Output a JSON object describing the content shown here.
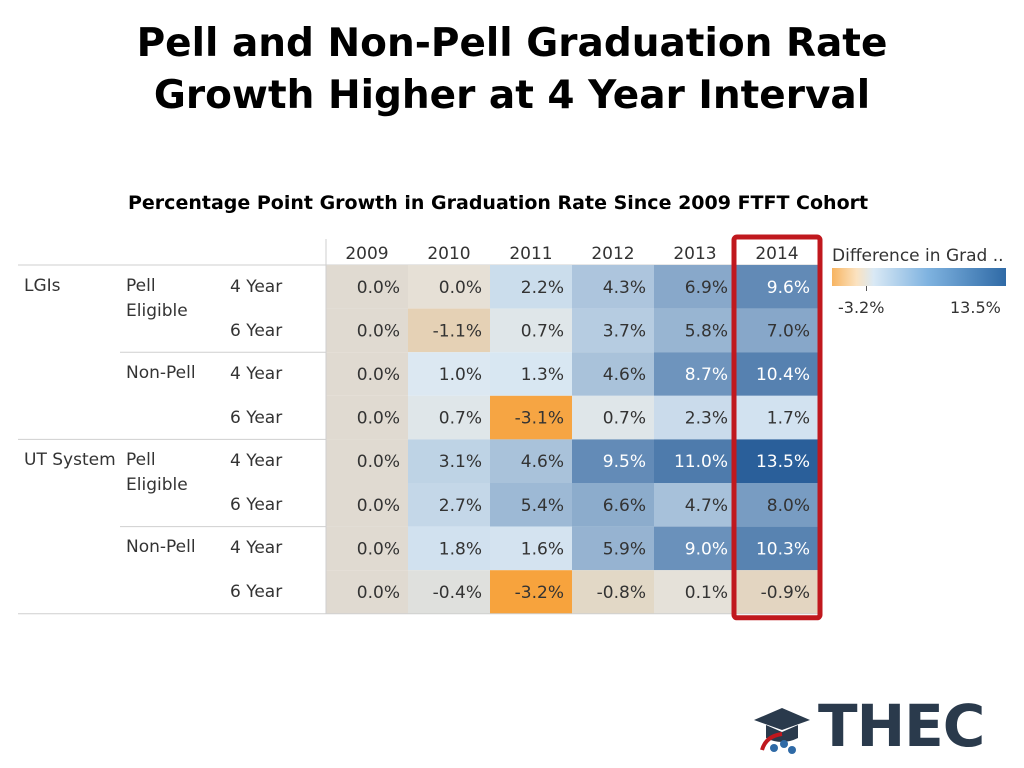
{
  "title": {
    "line1": "Pell and Non-Pell Graduation Rate",
    "line2": "Growth Higher at 4 Year Interval"
  },
  "subtitle": "Percentage Point Growth in Graduation Rate Since 2009 FTFT Cohort",
  "legend": {
    "title": "Difference in Grad ..",
    "min_label": "-3.2%",
    "max_label": "13.5%"
  },
  "row_labels": {
    "groups": [
      "LGIs",
      "UT System"
    ],
    "pell": [
      "Pell",
      "Eligible"
    ],
    "non_pell": "Non-Pell",
    "intervals": [
      "4 Year",
      "6 Year"
    ]
  },
  "colors": {
    "min": "#f7a33d",
    "mid": "#dbe9f4",
    "max": "#2a5f9a",
    "baseline": "#e0dad1",
    "highlight": "#c0181e",
    "header_bg": "#ffffff",
    "label_bg": "#ffffff"
  },
  "chart_data": {
    "type": "heatmap",
    "title": "Percentage Point Growth in Graduation Rate Since 2009 FTFT Cohort",
    "x": [
      "2009",
      "2010",
      "2011",
      "2012",
      "2013",
      "2014"
    ],
    "highlighted_column": "2014",
    "rows": [
      {
        "group": "LGIs",
        "status": "Pell Eligible",
        "interval": "4 Year",
        "values": [
          0.0,
          0.0,
          2.2,
          4.3,
          6.9,
          9.6
        ]
      },
      {
        "group": "LGIs",
        "status": "Pell Eligible",
        "interval": "6 Year",
        "values": [
          0.0,
          -1.1,
          0.7,
          3.7,
          5.8,
          7.0
        ]
      },
      {
        "group": "LGIs",
        "status": "Non-Pell",
        "interval": "4 Year",
        "values": [
          0.0,
          1.0,
          1.3,
          4.6,
          8.7,
          10.4
        ]
      },
      {
        "group": "LGIs",
        "status": "Non-Pell",
        "interval": "6 Year",
        "values": [
          0.0,
          0.7,
          -3.1,
          0.7,
          2.3,
          1.7
        ]
      },
      {
        "group": "UT System",
        "status": "Pell Eligible",
        "interval": "4 Year",
        "values": [
          0.0,
          3.1,
          4.6,
          9.5,
          11.0,
          13.5
        ]
      },
      {
        "group": "UT System",
        "status": "Pell Eligible",
        "interval": "6 Year",
        "values": [
          0.0,
          2.7,
          5.4,
          6.6,
          4.7,
          8.0
        ]
      },
      {
        "group": "UT System",
        "status": "Non-Pell",
        "interval": "4 Year",
        "values": [
          0.0,
          1.8,
          1.6,
          5.9,
          9.0,
          10.3
        ]
      },
      {
        "group": "UT System",
        "status": "Non-Pell",
        "interval": "6 Year",
        "values": [
          0.0,
          -0.4,
          -3.2,
          -0.8,
          0.1,
          -0.9
        ]
      }
    ],
    "value_range": [
      -3.2,
      13.5
    ],
    "value_suffix": "%",
    "legend": {
      "title": "Difference in Grad ..",
      "placement": "top-right"
    }
  },
  "logo": {
    "text": "THEC",
    "icon": "graduation-cap-stars-icon"
  }
}
